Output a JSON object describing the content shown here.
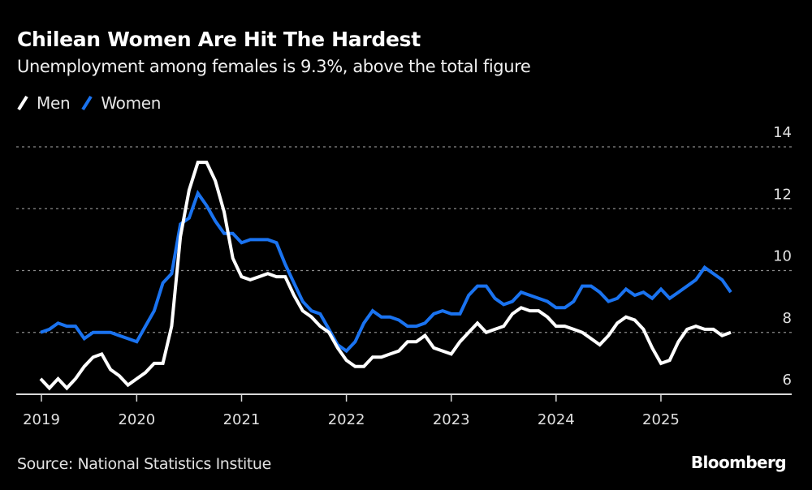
{
  "chart_data": {
    "type": "line",
    "title": "Chilean Women Are Hit The Hardest",
    "subtitle": "Unemployment among females is 9.3%, above the total figure",
    "xlabel": "",
    "ylabel": "",
    "x_start": "2019-02",
    "x_frequency": "monthly",
    "ylim": [
      6,
      14
    ],
    "yticks": [
      6,
      8,
      10,
      12,
      14
    ],
    "xticks": [
      "2019",
      "2020",
      "2021",
      "2022",
      "2023",
      "2024",
      "2025"
    ],
    "grid": true,
    "legend_position": "top-left",
    "series": [
      {
        "name": "Men",
        "color": "#ffffff",
        "values": [
          6.5,
          6.2,
          6.5,
          6.2,
          6.5,
          6.9,
          7.2,
          7.3,
          6.8,
          6.6,
          6.3,
          6.5,
          6.7,
          7.0,
          7.0,
          8.2,
          11.1,
          12.6,
          13.5,
          13.5,
          12.9,
          11.9,
          10.4,
          9.8,
          9.7,
          9.8,
          9.9,
          9.8,
          9.8,
          9.2,
          8.7,
          8.5,
          8.2,
          8.0,
          7.5,
          7.1,
          6.9,
          6.9,
          7.2,
          7.2,
          7.3,
          7.4,
          7.7,
          7.7,
          7.9,
          7.5,
          7.4,
          7.3,
          7.7,
          8.0,
          8.3,
          8.0,
          8.1,
          8.2,
          8.6,
          8.8,
          8.7,
          8.7,
          8.5,
          8.2,
          8.2,
          8.1,
          8.0,
          7.8,
          7.6,
          7.9,
          8.3,
          8.5,
          8.4,
          8.1,
          7.5,
          7.0,
          7.1,
          7.7,
          8.1,
          8.2,
          8.1,
          8.1,
          7.9,
          8.0
        ]
      },
      {
        "name": "Women",
        "color": "#1a73f0",
        "values": [
          8.0,
          8.1,
          8.3,
          8.2,
          8.2,
          7.8,
          8.0,
          8.0,
          8.0,
          7.9,
          7.8,
          7.7,
          8.2,
          8.7,
          9.6,
          9.9,
          11.5,
          11.7,
          12.5,
          12.1,
          11.6,
          11.2,
          11.2,
          10.9,
          11.0,
          11.0,
          11.0,
          10.9,
          10.2,
          9.6,
          9.0,
          8.7,
          8.6,
          8.1,
          7.6,
          7.4,
          7.7,
          8.3,
          8.7,
          8.5,
          8.5,
          8.4,
          8.2,
          8.2,
          8.3,
          8.6,
          8.7,
          8.6,
          8.6,
          9.2,
          9.5,
          9.5,
          9.1,
          8.9,
          9.0,
          9.3,
          9.2,
          9.1,
          9.0,
          8.8,
          8.8,
          9.0,
          9.5,
          9.5,
          9.3,
          9.0,
          9.1,
          9.4,
          9.2,
          9.3,
          9.1,
          9.4,
          9.1,
          9.3,
          9.5,
          9.7,
          10.1,
          9.9,
          9.7,
          9.3
        ]
      }
    ],
    "source": "Source: National Statistics Institue",
    "brand": "Bloomberg"
  }
}
